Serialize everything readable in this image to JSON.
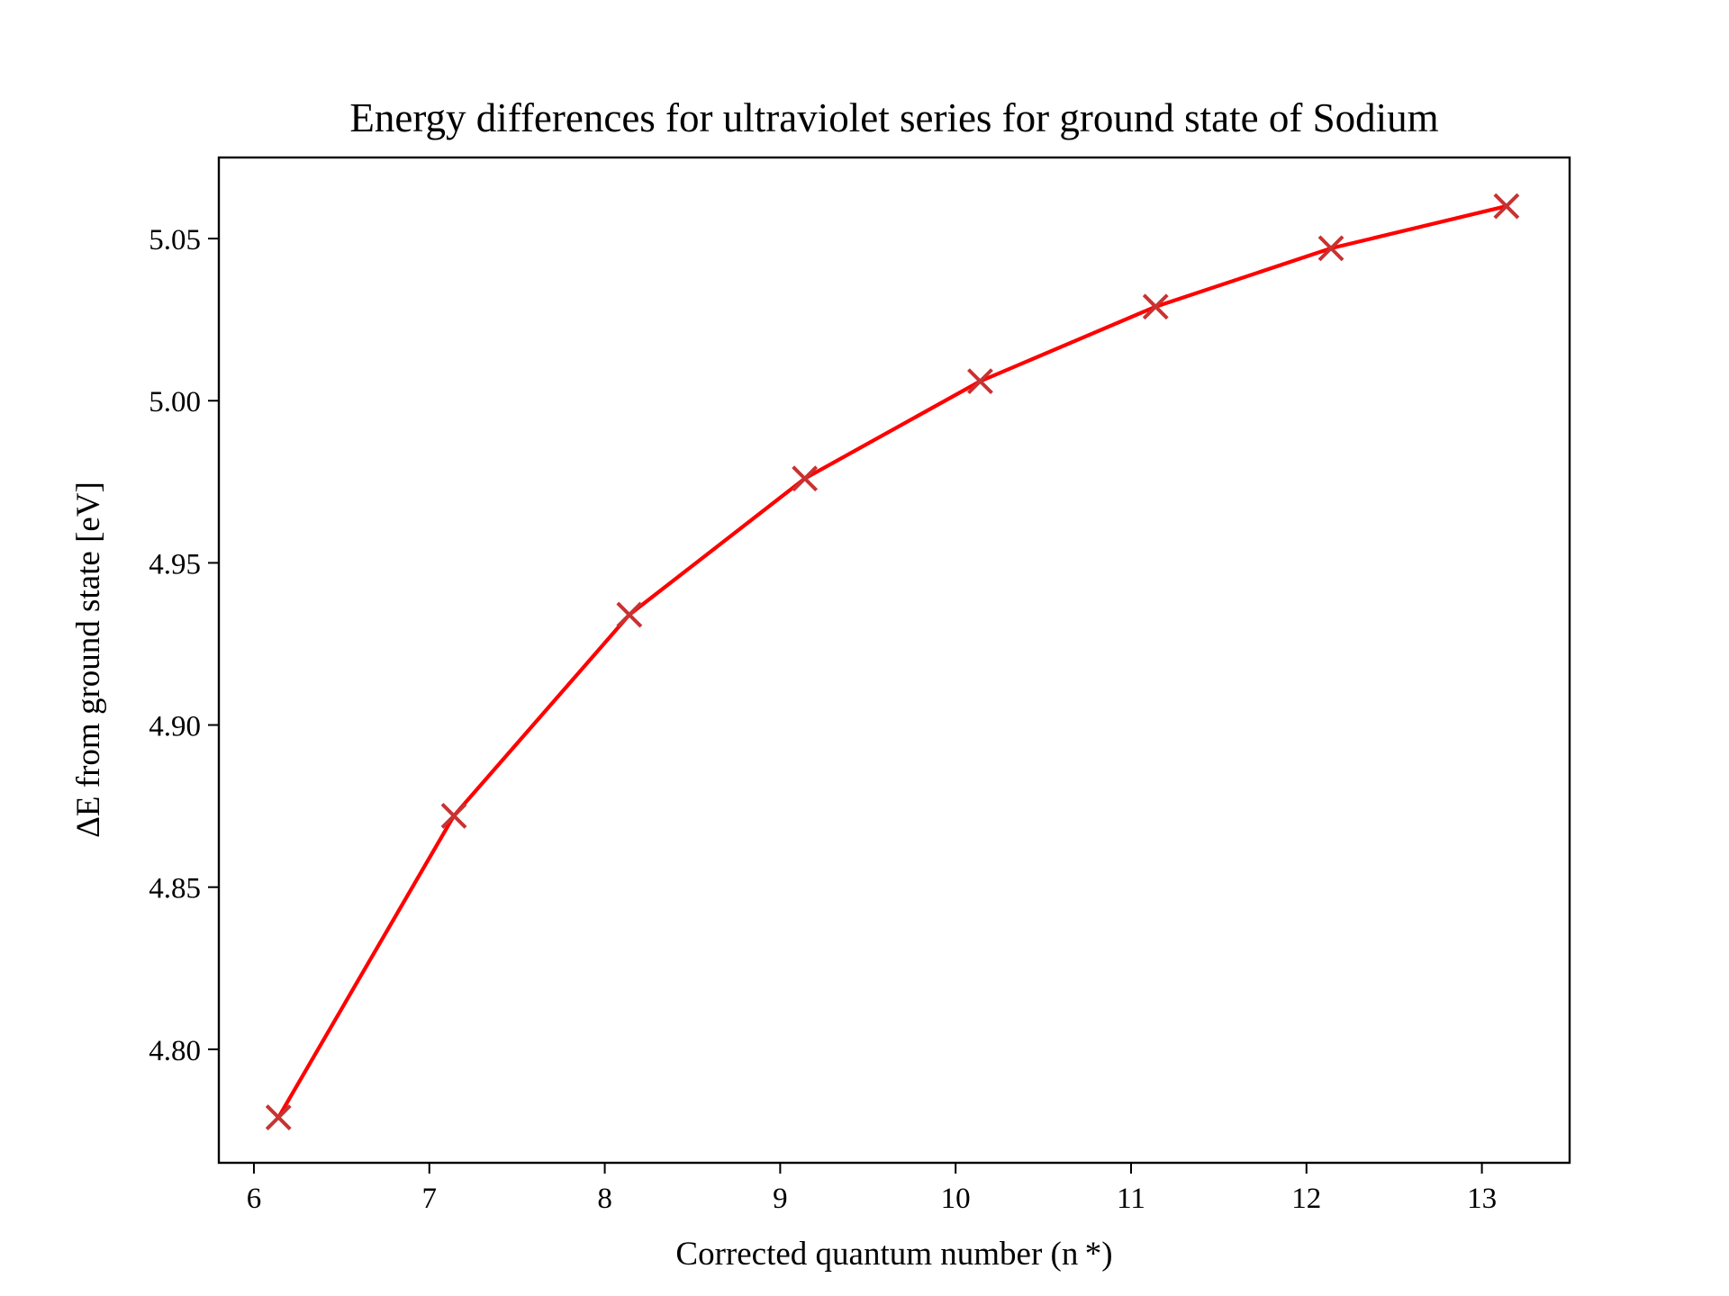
{
  "chart_data": {
    "type": "line",
    "title": "Energy differences for ultraviolet series for ground state of Sodium",
    "xlabel": "Corrected quantum number (n *)",
    "ylabel": "ΔE from ground state [eV]",
    "xlim": [
      5.8,
      13.5
    ],
    "ylim": [
      4.765,
      5.075
    ],
    "x_ticks": [
      6,
      7,
      8,
      9,
      10,
      11,
      12,
      13
    ],
    "x_tick_labels": [
      "6",
      "7",
      "8",
      "9",
      "10",
      "11",
      "12",
      "13"
    ],
    "y_ticks": [
      4.8,
      4.85,
      4.9,
      4.95,
      5.0,
      5.05
    ],
    "y_tick_labels": [
      "4.80",
      "4.85",
      "4.90",
      "4.95",
      "5.00",
      "5.05"
    ],
    "grid": false,
    "series": [
      {
        "line_color": "#ff0000",
        "marker": "x",
        "marker_color": "#c83232",
        "x": [
          6.14,
          7.14,
          8.14,
          9.14,
          10.14,
          11.14,
          12.14,
          13.14
        ],
        "y": [
          4.779,
          4.872,
          4.934,
          4.976,
          5.006,
          5.029,
          5.047,
          5.06
        ]
      }
    ]
  }
}
